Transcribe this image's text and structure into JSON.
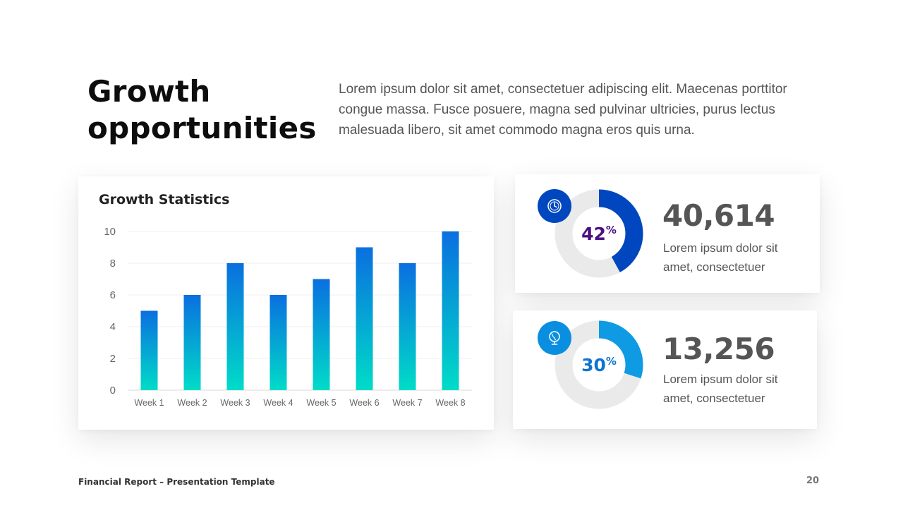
{
  "slide": {
    "title": "Growth opportunities",
    "intro": "Lorem ipsum dolor sit amet, consectetuer adipiscing elit. Maecenas porttitor congue massa. Fusce posuere, magna sed pulvinar ultricies, purus lectus malesuada libero, sit amet commodo magna eros quis urna."
  },
  "chart_data": {
    "type": "bar",
    "title": "Growth Statistics",
    "categories": [
      "Week 1",
      "Week 2",
      "Week 3",
      "Week 4",
      "Week 5",
      "Week 6",
      "Week 7",
      "Week 8"
    ],
    "values": [
      5,
      6,
      8,
      6,
      7,
      9,
      8,
      10
    ],
    "ylim": [
      0,
      10
    ],
    "yticks": [
      0,
      2,
      4,
      6,
      8,
      10
    ],
    "xlabel": "",
    "ylabel": "",
    "grid": true,
    "legend": "none",
    "colors": {
      "bar_top": "#0A6FE0",
      "bar_bottom": "#00DCC8"
    }
  },
  "stats": [
    {
      "percent": 42,
      "percent_label": "42",
      "percent_sign": "%",
      "value": "40,614",
      "desc": "Lorem ipsum dolor sit amet, consectetuer",
      "icon": "clock-icon",
      "arc_color": "#0047BF",
      "icon_bg": "#0047BF",
      "percent_color": "#4B0F82",
      "track_color": "#EAEAEA"
    },
    {
      "percent": 30,
      "percent_label": "30",
      "percent_sign": "%",
      "value": "13,256",
      "desc": "Lorem ipsum dolor sit amet, consectetuer",
      "icon": "globe-icon",
      "arc_color": "#0E9BE4",
      "icon_bg": "#0A8FE0",
      "percent_color": "#0E74D2",
      "track_color": "#EAEAEA"
    }
  ],
  "footer": {
    "text": "Financial Report – Presentation Template",
    "page": "20"
  }
}
